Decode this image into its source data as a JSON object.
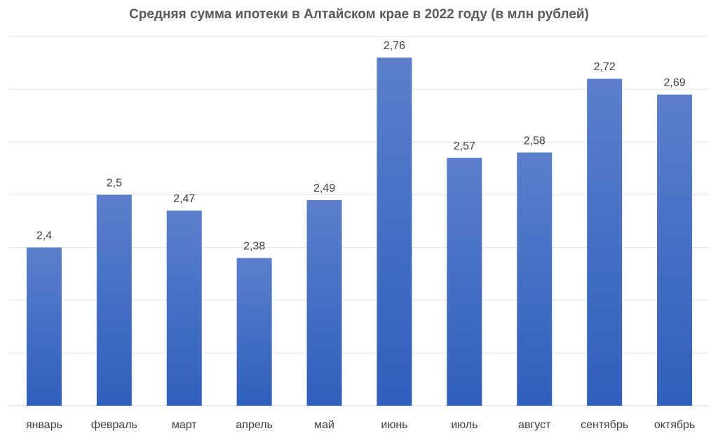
{
  "chart_data": {
    "type": "bar",
    "title": "Средняя сумма ипотеки в Алтайском крае в 2022 году (в млн рублей)",
    "xlabel": "",
    "ylabel": "",
    "categories": [
      "январь",
      "февраль",
      "март",
      "апрель",
      "май",
      "июнь",
      "июль",
      "август",
      "сентябрь",
      "октябрь"
    ],
    "values": [
      2.4,
      2.5,
      2.47,
      2.38,
      2.49,
      2.76,
      2.57,
      2.58,
      2.72,
      2.69
    ],
    "data_labels": [
      "2,4",
      "2,5",
      "2,47",
      "2,38",
      "2,49",
      "2,76",
      "2,57",
      "2,58",
      "2,72",
      "2,69"
    ],
    "ylim": [
      2.1,
      2.8
    ],
    "y_tick_step": 0.1,
    "grid": true,
    "legend": "none",
    "colors": {
      "bar_top": "#5b7fcb",
      "bar_bottom": "#2f5fbd",
      "grid": "#e3e3e3",
      "axis": "#d9d9d9",
      "text": "#404040",
      "title": "#595959"
    }
  }
}
